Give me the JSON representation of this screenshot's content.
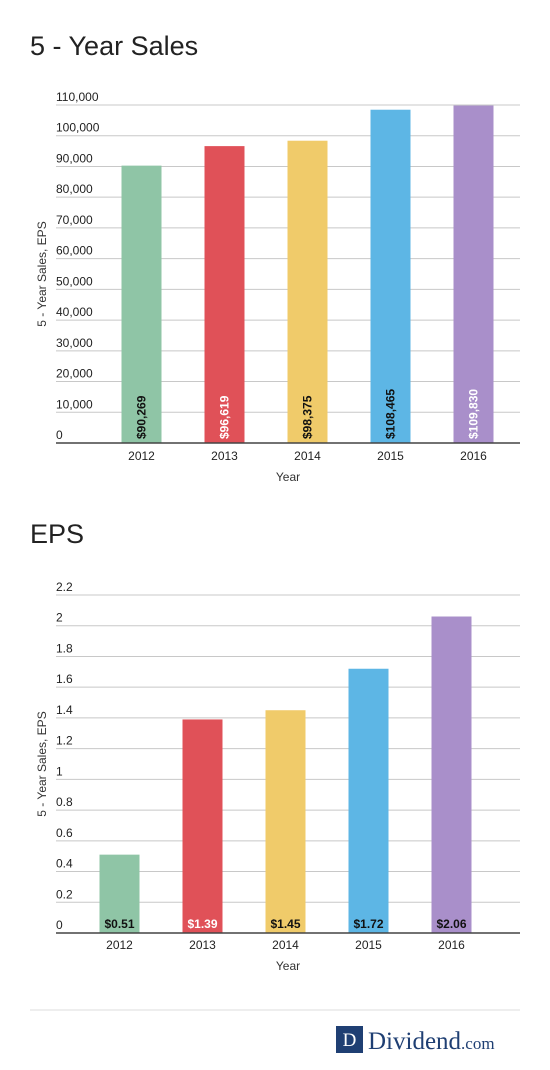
{
  "chart_data": [
    {
      "type": "bar",
      "title": "5 - Year Sales",
      "xlabel": "Year",
      "ylabel": "5 - Year Sales, EPS",
      "categories": [
        "2012",
        "2013",
        "2014",
        "2015",
        "2016"
      ],
      "values": [
        90269,
        96619,
        98375,
        108465,
        109830
      ],
      "data_labels": [
        "$90,269",
        "$96,619",
        "$98,375",
        "$108,465",
        "$109,830"
      ],
      "colors": [
        "#8fc5a6",
        "#e05158",
        "#f0cb6a",
        "#5db6e5",
        "#a98fca"
      ],
      "label_colors": [
        "#111111",
        "#ffffff",
        "#111111",
        "#111111",
        "#ffffff"
      ],
      "label_rotated": true,
      "ylim": [
        0,
        110000
      ],
      "yticks": [
        0,
        10000,
        20000,
        30000,
        40000,
        50000,
        60000,
        70000,
        80000,
        90000,
        100000,
        110000
      ],
      "ytick_labels": [
        "0",
        "10,000",
        "20,000",
        "30,000",
        "40,000",
        "50,000",
        "60,000",
        "70,000",
        "80,000",
        "90,000",
        "100,000",
        "110,000"
      ],
      "grid": true
    },
    {
      "type": "bar",
      "title": "EPS",
      "xlabel": "Year",
      "ylabel": "5 - Year Sales, EPS",
      "categories": [
        "2012",
        "2013",
        "2014",
        "2015",
        "2016"
      ],
      "values": [
        0.51,
        1.39,
        1.45,
        1.72,
        2.06
      ],
      "data_labels": [
        "$0.51",
        "$1.39",
        "$1.45",
        "$1.72",
        "$2.06"
      ],
      "colors": [
        "#8fc5a6",
        "#e05158",
        "#f0cb6a",
        "#5db6e5",
        "#a98fca"
      ],
      "label_colors": [
        "#111111",
        "#ffffff",
        "#111111",
        "#111111",
        "#111111"
      ],
      "label_rotated": false,
      "ylim": [
        0,
        2.2
      ],
      "yticks": [
        0,
        0.2,
        0.4,
        0.6,
        0.8,
        1,
        1.2,
        1.4,
        1.6,
        1.8,
        2,
        2.2
      ],
      "ytick_labels": [
        "0",
        "0.2",
        "0.4",
        "0.6",
        "0.8",
        "1",
        "1.2",
        "1.4",
        "1.6",
        "1.8",
        "2",
        "2.2"
      ],
      "grid": true
    }
  ],
  "footer": {
    "logo_letter": "D",
    "logo_name": "Dividend",
    "logo_suffix": ".com"
  }
}
